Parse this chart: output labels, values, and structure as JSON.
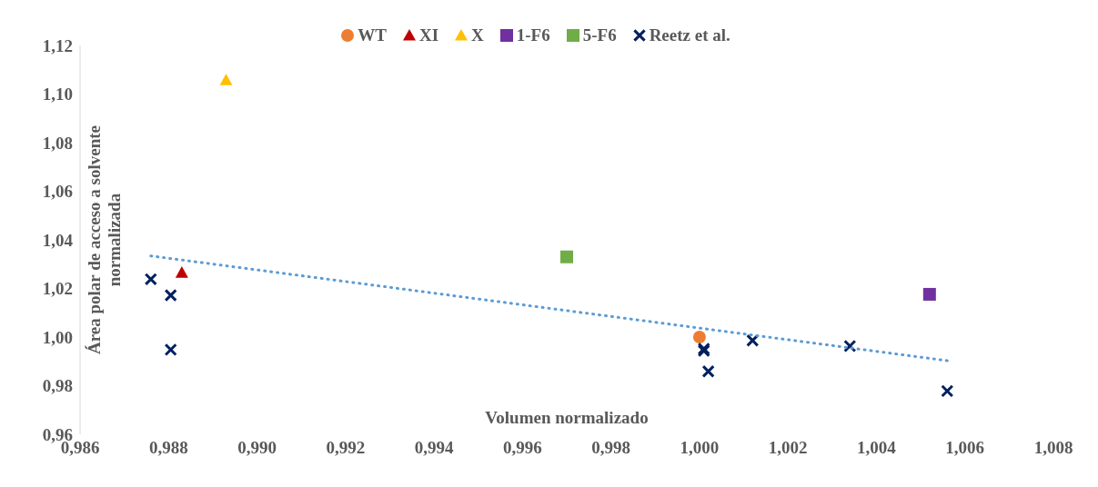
{
  "chart_data": {
    "type": "scatter",
    "xlabel": "Volumen normalizado",
    "ylabel": "Área polar  de acceso a solvente normalizada",
    "xlim": [
      0.986,
      1.008
    ],
    "ylim": [
      0.96,
      1.12
    ],
    "xticks": [
      {
        "value": 0.986,
        "label": "0,986"
      },
      {
        "value": 0.988,
        "label": "0,988"
      },
      {
        "value": 0.99,
        "label": "0,990"
      },
      {
        "value": 0.992,
        "label": "0,992"
      },
      {
        "value": 0.994,
        "label": "0,994"
      },
      {
        "value": 0.996,
        "label": "0,996"
      },
      {
        "value": 0.998,
        "label": "0,998"
      },
      {
        "value": 1.0,
        "label": "1,000"
      },
      {
        "value": 1.002,
        "label": "1,002"
      },
      {
        "value": 1.004,
        "label": "1,004"
      },
      {
        "value": 1.006,
        "label": "1,006"
      },
      {
        "value": 1.008,
        "label": "1,008"
      }
    ],
    "yticks": [
      {
        "value": 0.96,
        "label": "0,96"
      },
      {
        "value": 0.98,
        "label": "0,98"
      },
      {
        "value": 1.0,
        "label": "1,00"
      },
      {
        "value": 1.02,
        "label": "1,02"
      },
      {
        "value": 1.04,
        "label": "1,04"
      },
      {
        "value": 1.06,
        "label": "1,06"
      },
      {
        "value": 1.08,
        "label": "1,08"
      },
      {
        "value": 1.1,
        "label": "1,10"
      },
      {
        "value": 1.12,
        "label": "1,12"
      }
    ],
    "legend": "top",
    "series": [
      {
        "name": "WT",
        "color": "#ed7d31",
        "marker": "circle",
        "x": [
          1.0
        ],
        "values": [
          1.0
        ]
      },
      {
        "name": "XI",
        "color": "#c00000",
        "marker": "triangle",
        "x": [
          0.9883
        ],
        "values": [
          1.0265
        ]
      },
      {
        "name": "X",
        "color": "#ffc000",
        "marker": "triangle",
        "x": [
          0.9893
        ],
        "values": [
          1.1057
        ]
      },
      {
        "name": "1-F6",
        "color": "#7030a0",
        "marker": "square",
        "x": [
          1.0052
        ],
        "values": [
          1.0176
        ]
      },
      {
        "name": "5-F6",
        "color": "#70ad47",
        "marker": "square",
        "x": [
          0.997
        ],
        "values": [
          1.033
        ]
      },
      {
        "name": "Reetz et al.",
        "color": "#002060",
        "marker": "cross",
        "x": [
          0.9876,
          0.98805,
          0.98805,
          1.0001,
          1.0001,
          1.0002,
          1.0012,
          1.0034,
          1.0056
        ],
        "values": [
          1.0238,
          1.0172,
          0.9948,
          0.9952,
          0.9944,
          0.9859,
          0.9986,
          0.9963,
          0.9778
        ]
      },
      {
        "type": "line",
        "color": "#5b9bd5",
        "line_style": "dotted",
        "marker": "none",
        "x": [
          0.9876,
          1.0056
        ],
        "values": [
          1.0334,
          0.9903
        ]
      }
    ]
  }
}
